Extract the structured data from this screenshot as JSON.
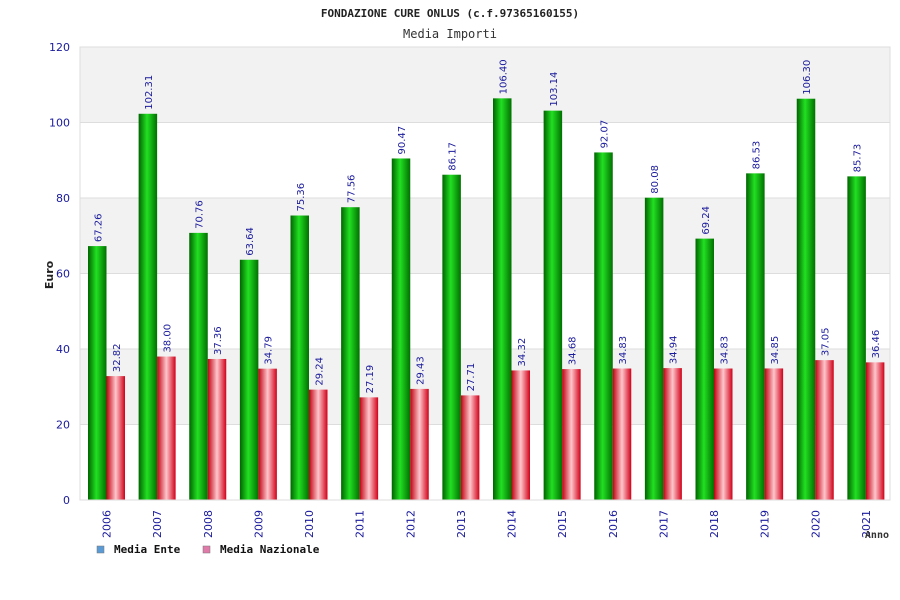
{
  "chart_data": {
    "type": "bar",
    "title": "FONDAZIONE CURE ONLUS (c.f.97365160155)",
    "subtitle": "Media Importi",
    "xlabel": "Anno",
    "ylabel": "Euro",
    "ylim": [
      0,
      120
    ],
    "yticks": [
      0,
      20,
      40,
      60,
      80,
      100,
      120
    ],
    "categories": [
      "2006",
      "2007",
      "2008",
      "2009",
      "2010",
      "2011",
      "2012",
      "2013",
      "2014",
      "2015",
      "2016",
      "2017",
      "2018",
      "2019",
      "2020",
      "2021"
    ],
    "series": [
      {
        "name": "Media Ente",
        "legend_color": "#5b9bd5",
        "bar_color": "#00b400",
        "values": [
          67.26,
          102.31,
          70.76,
          63.64,
          75.36,
          77.56,
          90.47,
          86.17,
          106.4,
          103.14,
          92.07,
          80.08,
          69.24,
          86.53,
          106.3,
          85.73
        ],
        "labels": [
          "67.26",
          "102.31",
          "70.76",
          "63.64",
          "75.36",
          "77.56",
          "90.47",
          "86.17",
          "106.40",
          "103.14",
          "92.07",
          "80.08",
          "69.24",
          "86.53",
          "106.30",
          "85.73"
        ]
      },
      {
        "name": "Media Nazionale",
        "legend_color": "#e07aa8",
        "bar_color": "#e8001c",
        "values": [
          32.82,
          38.0,
          37.36,
          34.79,
          29.24,
          27.19,
          29.43,
          27.71,
          34.32,
          34.68,
          34.83,
          34.94,
          34.83,
          34.85,
          37.05,
          36.46
        ],
        "labels": [
          "32.82",
          "38.00",
          "37.36",
          "34.79",
          "29.24",
          "27.19",
          "29.43",
          "27.71",
          "34.32",
          "34.68",
          "34.83",
          "34.94",
          "34.83",
          "34.85",
          "37.05",
          "36.46"
        ]
      }
    ],
    "grid": true,
    "legend_position": "bottom-left"
  }
}
